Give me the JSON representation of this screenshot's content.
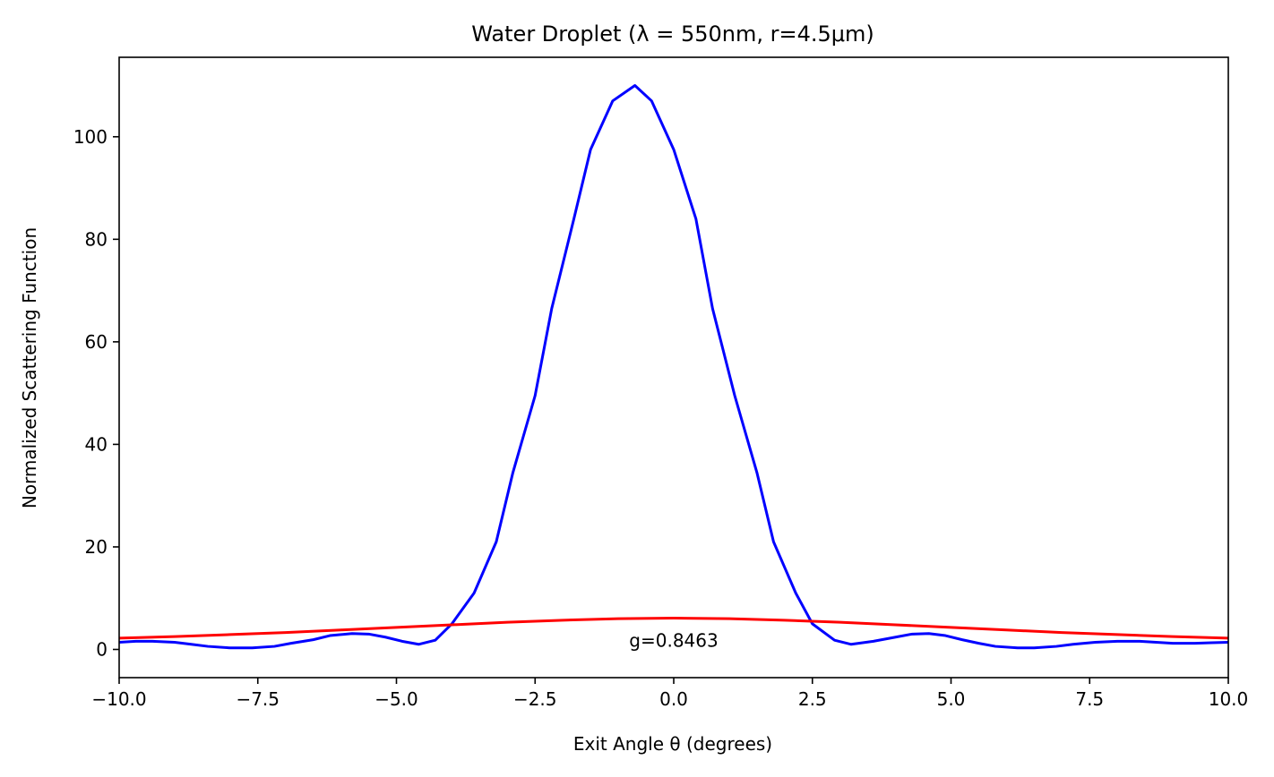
{
  "chart_data": {
    "type": "line",
    "title": "Water Droplet (λ = 550nm, r=4.5μm)",
    "xlabel": "Exit Angle θ (degrees)",
    "ylabel": "Normalized Scattering Function",
    "xlim": [
      -10,
      10
    ],
    "ylim": [
      -5.5,
      115.5
    ],
    "x_ticks": [
      -10.0,
      -7.5,
      -5.0,
      -2.5,
      0.0,
      2.5,
      5.0,
      7.5,
      10.0
    ],
    "x_tick_labels": [
      "−10.0",
      "−7.5",
      "−5.0",
      "−2.5",
      "0.0",
      "2.5",
      "5.0",
      "7.5",
      "10.0"
    ],
    "y_ticks": [
      0,
      20,
      40,
      60,
      80,
      100
    ],
    "y_tick_labels": [
      "0",
      "20",
      "40",
      "60",
      "80",
      "100"
    ],
    "grid": false,
    "annotations": [
      {
        "text": "g=0.8463",
        "x": 0.0,
        "y": 0.2
      }
    ],
    "series": [
      {
        "color": "#0000ff",
        "x": [
          -10.0,
          -9.7,
          -9.4,
          -9.0,
          -8.7,
          -8.4,
          -8.0,
          -7.6,
          -7.2,
          -6.9,
          -6.5,
          -6.2,
          -5.8,
          -5.5,
          -5.2,
          -4.9,
          -4.6,
          -4.3,
          -4.0,
          -3.6,
          -3.2,
          -2.9,
          -2.5,
          -2.2,
          -1.8,
          -1.5,
          -1.1,
          -0.7,
          -0.4,
          0.0,
          0.4,
          0.7,
          1.1,
          1.5,
          1.8,
          2.2,
          2.5,
          2.9,
          3.2,
          3.6,
          4.0,
          4.3,
          4.6,
          4.9,
          5.2,
          5.5,
          5.8,
          6.2,
          6.5,
          6.9,
          7.2,
          7.6,
          8.0,
          8.4,
          8.7,
          9.0,
          9.4,
          9.7,
          10.0
        ],
        "y": [
          1.4,
          1.6,
          1.6,
          1.4,
          1.0,
          0.6,
          0.3,
          0.3,
          0.6,
          1.2,
          1.9,
          2.7,
          3.1,
          3.0,
          2.4,
          1.6,
          1.0,
          1.8,
          5.0,
          11.0,
          21.0,
          34.5,
          49.5,
          66.5,
          84.0,
          97.5,
          107.0,
          110.0,
          107.0,
          97.5,
          84.0,
          66.5,
          49.5,
          34.5,
          21.0,
          11.0,
          5.0,
          1.8,
          1.0,
          1.6,
          2.4,
          3.0,
          3.1,
          2.7,
          1.9,
          1.2,
          0.6,
          0.3,
          0.3,
          0.6,
          1.0,
          1.4,
          1.6,
          1.6,
          1.4,
          1.2,
          1.2,
          1.3,
          1.4
        ]
      },
      {
        "color": "#ff0000",
        "x": [
          -10.0,
          -9.0,
          -8.0,
          -7.0,
          -6.0,
          -5.0,
          -4.0,
          -3.0,
          -2.0,
          -1.0,
          0.0,
          1.0,
          2.0,
          3.0,
          4.0,
          5.0,
          6.0,
          7.0,
          8.0,
          9.0,
          10.0
        ],
        "y": [
          2.2,
          2.5,
          2.9,
          3.3,
          3.8,
          4.3,
          4.8,
          5.3,
          5.7,
          6.0,
          6.1,
          6.0,
          5.7,
          5.3,
          4.8,
          4.3,
          3.8,
          3.3,
          2.9,
          2.5,
          2.2
        ]
      }
    ]
  }
}
